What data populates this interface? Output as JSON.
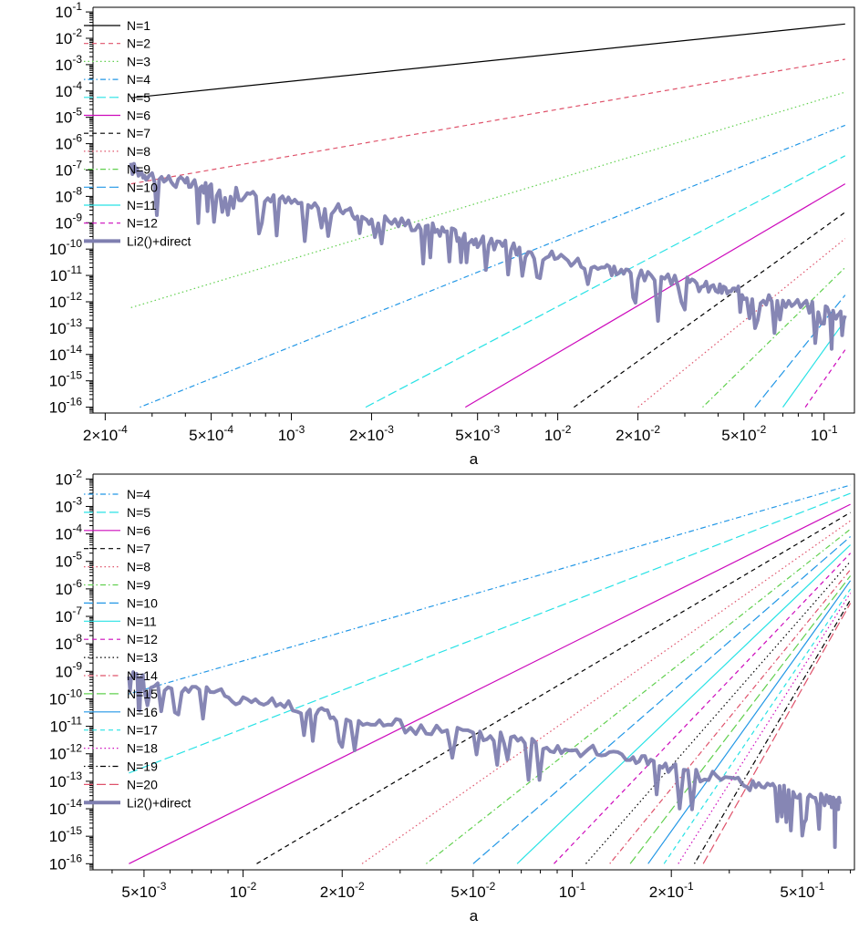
{
  "colors": {
    "N1": "#000000",
    "N2": "#df536b",
    "N3": "#61d04f",
    "N4": "#2297e6",
    "N5": "#28e2e5",
    "N6": "#cd0bbc",
    "N7": "#000000",
    "N8": "#df536b",
    "N9": "#61d04f",
    "N10": "#2297e6",
    "N11": "#28e2e5",
    "N12": "#cd0bbc",
    "N13": "#000000",
    "N14": "#df536b",
    "N15": "#61d04f",
    "N16": "#2297e6",
    "N17": "#28e2e5",
    "N18": "#cd0bbc",
    "N19": "#000000",
    "N20": "#df536b",
    "direct": "#7f7fb0"
  },
  "chart_data": [
    {
      "type": "line",
      "xscale": "log",
      "yscale": "log",
      "xlabel": "a",
      "ylabel": "",
      "xlim": [
        0.00018,
        0.13
      ],
      "ylim": [
        6e-17,
        0.15
      ],
      "x_ticks": [
        {
          "value": 0.0002,
          "mant": "2×10",
          "exp": "-4"
        },
        {
          "value": 0.0005,
          "mant": "5×10",
          "exp": "-4"
        },
        {
          "value": 0.001,
          "mant": "10",
          "exp": "-3"
        },
        {
          "value": 0.002,
          "mant": "2×10",
          "exp": "-3"
        },
        {
          "value": 0.005,
          "mant": "5×10",
          "exp": "-3"
        },
        {
          "value": 0.01,
          "mant": "10",
          "exp": "-2"
        },
        {
          "value": 0.02,
          "mant": "2×10",
          "exp": "-2"
        },
        {
          "value": 0.05,
          "mant": "5×10",
          "exp": "-2"
        },
        {
          "value": 0.1,
          "mant": "10",
          "exp": "-1"
        }
      ],
      "y_ticks": [
        {
          "value": 0.1,
          "mant": "10",
          "exp": "-1"
        },
        {
          "value": 0.01,
          "mant": "10",
          "exp": "-2"
        },
        {
          "value": 0.001,
          "mant": "10",
          "exp": "-3"
        },
        {
          "value": 0.0001,
          "mant": "10",
          "exp": "-4"
        },
        {
          "value": 1e-05,
          "mant": "10",
          "exp": "-5"
        },
        {
          "value": 1e-06,
          "mant": "10",
          "exp": "-6"
        },
        {
          "value": 1e-07,
          "mant": "10",
          "exp": "-7"
        },
        {
          "value": 1e-08,
          "mant": "10",
          "exp": "-8"
        },
        {
          "value": 1e-09,
          "mant": "10",
          "exp": "-9"
        },
        {
          "value": 1e-10,
          "mant": "10",
          "exp": "-10"
        },
        {
          "value": 1e-11,
          "mant": "10",
          "exp": "-11"
        },
        {
          "value": 1e-12,
          "mant": "10",
          "exp": "-12"
        },
        {
          "value": 1e-13,
          "mant": "10",
          "exp": "-13"
        },
        {
          "value": 1e-14,
          "mant": "10",
          "exp": "-14"
        },
        {
          "value": 1e-15,
          "mant": "10",
          "exp": "-15"
        },
        {
          "value": 1e-16,
          "mant": "10",
          "exp": "-16"
        }
      ],
      "series": [
        {
          "name": "N=1",
          "key": "N1",
          "dash": "solid",
          "x": [
            0.00025,
            0.12
          ],
          "y": [
            5.5e-05,
            0.035
          ]
        },
        {
          "name": "N=2",
          "key": "N2",
          "dash": "dashed",
          "x": [
            0.00025,
            0.12
          ],
          "y": [
            3e-08,
            0.0016
          ]
        },
        {
          "name": "N=3",
          "key": "N3",
          "dash": "dotted",
          "x": [
            0.00025,
            0.12
          ],
          "y": [
            6e-13,
            9e-05
          ]
        },
        {
          "name": "N=4",
          "key": "N4",
          "dash": "dotdash",
          "x": [
            0.00027,
            0.12
          ],
          "y": [
            1e-16,
            5e-06
          ]
        },
        {
          "name": "N=5",
          "key": "N5",
          "dash": "longdash",
          "x": [
            0.0019,
            0.12
          ],
          "y": [
            1e-16,
            3.5e-07
          ]
        },
        {
          "name": "N=6",
          "key": "N6",
          "dash": "solid",
          "x": [
            0.0045,
            0.12
          ],
          "y": [
            1e-16,
            3e-08
          ]
        },
        {
          "name": "N=7",
          "key": "N7",
          "dash": "dashed",
          "x": [
            0.0115,
            0.12
          ],
          "y": [
            1e-16,
            2.5e-09
          ]
        },
        {
          "name": "N=8",
          "key": "N8",
          "dash": "dotted",
          "x": [
            0.02,
            0.12
          ],
          "y": [
            1e-16,
            2.5e-10
          ]
        },
        {
          "name": "N=9",
          "key": "N9",
          "dash": "dotdash",
          "x": [
            0.035,
            0.12
          ],
          "y": [
            1e-16,
            2e-11
          ]
        },
        {
          "name": "N=10",
          "key": "N10",
          "dash": "longdash",
          "x": [
            0.055,
            0.12
          ],
          "y": [
            1e-16,
            1.8e-12
          ]
        },
        {
          "name": "N=11",
          "key": "N11",
          "dash": "solid",
          "x": [
            0.07,
            0.12
          ],
          "y": [
            1e-16,
            2e-13
          ]
        },
        {
          "name": "N=12",
          "key": "N12",
          "dash": "dashed",
          "x": [
            0.085,
            0.12
          ],
          "y": [
            1e-16,
            1.5e-14
          ]
        },
        {
          "name": "Li2()+direct",
          "key": "direct",
          "dash": "solid",
          "wide": true,
          "x": [
            0.00025,
            0.0003,
            0.0004,
            0.0005,
            0.0007,
            0.001,
            0.0015,
            0.002,
            0.003,
            0.004,
            0.005,
            0.007,
            0.01,
            0.015,
            0.02,
            0.03,
            0.04,
            0.05,
            0.07,
            0.1,
            0.12
          ],
          "y": [
            1.2e-07,
            6e-08,
            3e-08,
            2e-08,
            1e-08,
            6e-09,
            3e-09,
            1.5e-09,
            8e-10,
            4e-10,
            2e-10,
            1e-10,
            5e-11,
            2e-11,
            1e-11,
            5e-12,
            3e-12,
            2e-12,
            1e-12,
            5e-13,
            3e-13
          ]
        }
      ]
    },
    {
      "type": "line",
      "xscale": "log",
      "yscale": "log",
      "xlabel": "a",
      "ylabel": "",
      "xlim": [
        0.0035,
        0.72
      ],
      "ylim": [
        6e-17,
        0.015
      ],
      "x_ticks": [
        {
          "value": 0.005,
          "mant": "5×10",
          "exp": "-3"
        },
        {
          "value": 0.01,
          "mant": "10",
          "exp": "-2"
        },
        {
          "value": 0.02,
          "mant": "2×10",
          "exp": "-2"
        },
        {
          "value": 0.05,
          "mant": "5×10",
          "exp": "-2"
        },
        {
          "value": 0.1,
          "mant": "10",
          "exp": "-1"
        },
        {
          "value": 0.2,
          "mant": "2×10",
          "exp": "-1"
        },
        {
          "value": 0.5,
          "mant": "5×10",
          "exp": "-1"
        }
      ],
      "y_ticks": [
        {
          "value": 0.01,
          "mant": "10",
          "exp": "-2"
        },
        {
          "value": 0.001,
          "mant": "10",
          "exp": "-3"
        },
        {
          "value": 0.0001,
          "mant": "10",
          "exp": "-4"
        },
        {
          "value": 1e-05,
          "mant": "10",
          "exp": "-5"
        },
        {
          "value": 1e-06,
          "mant": "10",
          "exp": "-6"
        },
        {
          "value": 1e-07,
          "mant": "10",
          "exp": "-7"
        },
        {
          "value": 1e-08,
          "mant": "10",
          "exp": "-8"
        },
        {
          "value": 1e-09,
          "mant": "10",
          "exp": "-9"
        },
        {
          "value": 1e-10,
          "mant": "10",
          "exp": "-10"
        },
        {
          "value": 1e-11,
          "mant": "10",
          "exp": "-11"
        },
        {
          "value": 1e-12,
          "mant": "10",
          "exp": "-12"
        },
        {
          "value": 1e-13,
          "mant": "10",
          "exp": "-13"
        },
        {
          "value": 1e-14,
          "mant": "10",
          "exp": "-14"
        },
        {
          "value": 1e-15,
          "mant": "10",
          "exp": "-15"
        },
        {
          "value": 1e-16,
          "mant": "10",
          "exp": "-16"
        }
      ],
      "series": [
        {
          "name": "N=4",
          "key": "N4",
          "dash": "dotdash",
          "x": [
            0.0045,
            0.7
          ],
          "y": [
            1.5e-10,
            0.006
          ]
        },
        {
          "name": "N=5",
          "key": "N5",
          "dash": "longdash",
          "x": [
            0.0045,
            0.7
          ],
          "y": [
            2e-13,
            0.003
          ]
        },
        {
          "name": "N=6",
          "key": "N6",
          "dash": "solid",
          "x": [
            0.0045,
            0.7
          ],
          "y": [
            1e-16,
            0.0012
          ]
        },
        {
          "name": "N=7",
          "key": "N7",
          "dash": "dashed",
          "x": [
            0.011,
            0.7
          ],
          "y": [
            1e-16,
            0.0006
          ]
        },
        {
          "name": "N=8",
          "key": "N8",
          "dash": "dotted",
          "x": [
            0.023,
            0.7
          ],
          "y": [
            1e-16,
            0.0003
          ]
        },
        {
          "name": "N=9",
          "key": "N9",
          "dash": "dotdash",
          "x": [
            0.036,
            0.7
          ],
          "y": [
            1e-16,
            0.00015
          ]
        },
        {
          "name": "N=10",
          "key": "N10",
          "dash": "longdash",
          "x": [
            0.05,
            0.7
          ],
          "y": [
            1e-16,
            8e-05
          ]
        },
        {
          "name": "N=11",
          "key": "N11",
          "dash": "solid",
          "x": [
            0.068,
            0.7
          ],
          "y": [
            1e-16,
            4e-05
          ]
        },
        {
          "name": "N=12",
          "key": "N12",
          "dash": "dashed",
          "x": [
            0.088,
            0.7
          ],
          "y": [
            1e-16,
            2e-05
          ]
        },
        {
          "name": "N=13",
          "key": "N13",
          "dash": "dotted",
          "x": [
            0.11,
            0.7
          ],
          "y": [
            1e-16,
            1e-05
          ]
        },
        {
          "name": "N=14",
          "key": "N14",
          "dash": "dotdash",
          "x": [
            0.13,
            0.7
          ],
          "y": [
            1e-16,
            5e-06
          ]
        },
        {
          "name": "N=15",
          "key": "N15",
          "dash": "longdash",
          "x": [
            0.15,
            0.7
          ],
          "y": [
            1e-16,
            3e-06
          ]
        },
        {
          "name": "N=16",
          "key": "N16",
          "dash": "solid",
          "x": [
            0.17,
            0.7
          ],
          "y": [
            1e-16,
            2e-06
          ]
        },
        {
          "name": "N=17",
          "key": "N17",
          "dash": "dashed",
          "x": [
            0.19,
            0.7
          ],
          "y": [
            1e-16,
            1e-06
          ]
        },
        {
          "name": "N=18",
          "key": "N18",
          "dash": "dotted",
          "x": [
            0.21,
            0.7
          ],
          "y": [
            1e-16,
            7e-07
          ]
        },
        {
          "name": "N=19",
          "key": "N19",
          "dash": "dotdash",
          "x": [
            0.235,
            0.7
          ],
          "y": [
            1e-16,
            4e-07
          ]
        },
        {
          "name": "N=20",
          "key": "N20",
          "dash": "longdash",
          "x": [
            0.25,
            0.7
          ],
          "y": [
            1e-16,
            3e-07
          ]
        },
        {
          "name": "Li2()+direct",
          "key": "direct",
          "dash": "solid",
          "wide": true,
          "x": [
            0.0045,
            0.005,
            0.007,
            0.01,
            0.015,
            0.02,
            0.03,
            0.05,
            0.07,
            0.1,
            0.15,
            0.2,
            0.3,
            0.4,
            0.5,
            0.6,
            0.65
          ],
          "y": [
            1e-09,
            4e-10,
            2e-10,
            1e-10,
            5e-11,
            2e-11,
            1e-11,
            5e-12,
            3e-12,
            1.5e-12,
            8e-13,
            3e-13,
            1e-13,
            6e-14,
            3e-14,
            2e-14,
            1.5e-14
          ]
        }
      ]
    }
  ]
}
